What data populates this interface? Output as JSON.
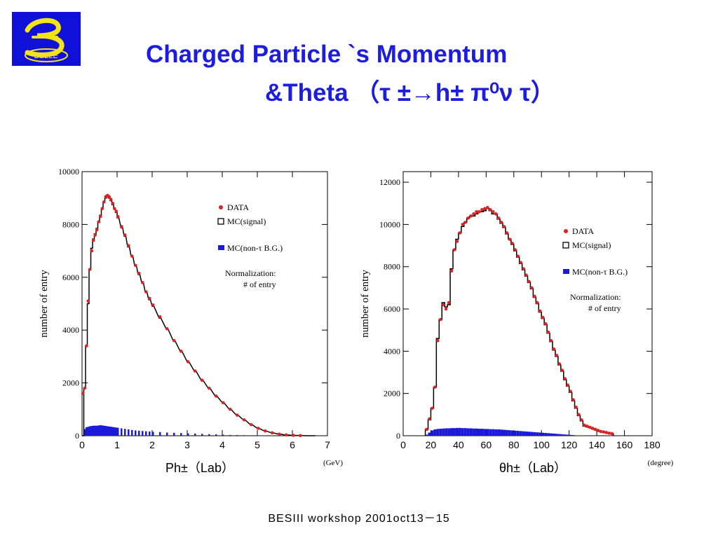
{
  "logo": {
    "letter": "B",
    "text": "BELLE"
  },
  "title": {
    "line1": "Charged Particle `s  Momentum",
    "line2": "&Theta  （τ ±→h± π⁰ν τ）"
  },
  "footer": "BESIII  workshop  2001oct13－15",
  "colors": {
    "title": "#1d1de0",
    "data": "#dd2222",
    "mc_signal": "#000000",
    "mc_bg": "#1a1ad8",
    "logo_bg": "#1010d8",
    "logo_fg": "#f2e31a"
  },
  "chart_data": [
    {
      "type": "histogram",
      "ylabel": "number of entry",
      "xlabel_left": "Ph±（Lab）",
      "xlabel_unit": "(GeV)",
      "xlim": [
        0,
        7
      ],
      "ylim": [
        0,
        10000
      ],
      "xticks": [
        "0",
        "1",
        "2",
        "3",
        "4",
        "5",
        "6",
        "7"
      ],
      "yticks": [
        "0",
        "2000",
        "4000",
        "6000",
        "8000",
        "10000"
      ],
      "legend": [
        "DATA",
        "MC(signal)",
        "MC(non-τ B.G.)"
      ],
      "note": [
        "Normalization:",
        "# of entry"
      ],
      "x": [
        0.0,
        0.05,
        0.1,
        0.15,
        0.2,
        0.25,
        0.3,
        0.35,
        0.4,
        0.45,
        0.5,
        0.55,
        0.6,
        0.65,
        0.7,
        0.75,
        0.8,
        0.85,
        0.9,
        0.95,
        1.0,
        1.1,
        1.2,
        1.3,
        1.4,
        1.5,
        1.6,
        1.7,
        1.8,
        1.9,
        2.0,
        2.2,
        2.4,
        2.6,
        2.8,
        3.0,
        3.2,
        3.4,
        3.6,
        3.8,
        4.0,
        4.2,
        4.4,
        4.6,
        4.8,
        5.0,
        5.2,
        5.4,
        5.6,
        5.8,
        6.0,
        6.2,
        6.4,
        6.6
      ],
      "series": [
        {
          "name": "DATA",
          "values": [
            1600,
            1800,
            3400,
            5100,
            6300,
            7000,
            7400,
            7600,
            7800,
            8100,
            8300,
            8600,
            8850,
            9050,
            9100,
            9050,
            8950,
            8800,
            8600,
            8500,
            8300,
            7900,
            7600,
            7200,
            6800,
            6450,
            6150,
            5800,
            5450,
            5200,
            4950,
            4500,
            4050,
            3600,
            3200,
            2800,
            2450,
            2100,
            1800,
            1500,
            1250,
            1000,
            780,
            600,
            420,
            280,
            180,
            110,
            60,
            30,
            15,
            5,
            0,
            0
          ]
        },
        {
          "name": "MC(signal)",
          "values": [
            0,
            1800,
            3400,
            5000,
            6300,
            7100,
            7450,
            7650,
            7850,
            8100,
            8350,
            8600,
            8850,
            9000,
            9050,
            9000,
            8900,
            8750,
            8600,
            8450,
            8250,
            7950,
            7550,
            7150,
            6800,
            6450,
            6100,
            5800,
            5450,
            5150,
            4900,
            4450,
            4050,
            3600,
            3200,
            2800,
            2450,
            2100,
            1800,
            1500,
            1250,
            1000,
            780,
            600,
            420,
            280,
            180,
            110,
            60,
            30,
            15,
            5,
            0,
            0
          ]
        },
        {
          "name": "MC(non-τ B.G.)",
          "values": [
            0,
            250,
            320,
            340,
            360,
            370,
            380,
            380,
            380,
            390,
            400,
            390,
            380,
            370,
            360,
            350,
            340,
            330,
            320,
            310,
            300,
            280,
            260,
            240,
            220,
            200,
            190,
            180,
            170,
            160,
            150,
            140,
            120,
            110,
            100,
            90,
            80,
            70,
            60,
            50,
            40,
            30,
            25,
            20,
            15,
            10,
            8,
            5,
            3,
            2,
            1,
            0,
            0,
            0
          ]
        }
      ]
    },
    {
      "type": "histogram",
      "ylabel": "number of entry",
      "xlabel_left": "θh±（Lab）",
      "xlabel_unit": "(degree)",
      "xlim": [
        0,
        180
      ],
      "ylim": [
        0,
        12500
      ],
      "xticks": [
        "0",
        "20",
        "40",
        "60",
        "80",
        "100",
        "120",
        "140",
        "160",
        "180"
      ],
      "yticks": [
        "0",
        "2000",
        "4000",
        "6000",
        "8000",
        "10000",
        "12000"
      ],
      "legend": [
        "DATA",
        "MC(signal)",
        "MC(non-τ B.G.)"
      ],
      "note": [
        "Normalization:",
        "# of entry"
      ],
      "x": [
        16,
        18,
        20,
        22,
        24,
        26,
        28,
        30,
        32,
        34,
        36,
        38,
        40,
        42,
        44,
        46,
        48,
        50,
        52,
        54,
        56,
        58,
        60,
        62,
        64,
        66,
        68,
        70,
        72,
        74,
        76,
        78,
        80,
        82,
        84,
        86,
        88,
        90,
        92,
        94,
        96,
        98,
        100,
        102,
        104,
        106,
        108,
        110,
        112,
        114,
        116,
        118,
        120,
        122,
        124,
        126,
        128,
        130,
        132,
        134,
        136,
        138,
        140,
        142,
        144,
        146,
        148,
        150
      ],
      "series": [
        {
          "name": "DATA",
          "values": [
            300,
            800,
            1300,
            2300,
            4500,
            5500,
            6200,
            6000,
            6300,
            7800,
            8800,
            9200,
            9600,
            10000,
            10100,
            10300,
            10400,
            10500,
            10600,
            10600,
            10700,
            10750,
            10800,
            10700,
            10600,
            10500,
            10300,
            10100,
            9900,
            9600,
            9300,
            9100,
            8800,
            8500,
            8200,
            7900,
            7600,
            7300,
            7000,
            6600,
            6300,
            5900,
            5600,
            5300,
            4900,
            4500,
            4100,
            3800,
            3400,
            3100,
            2700,
            2400,
            2100,
            1700,
            1350,
            1000,
            750,
            500,
            450,
            400,
            350,
            300,
            250,
            200,
            180,
            150,
            120,
            100
          ]
        },
        {
          "name": "MC(signal)",
          "values": [
            300,
            750,
            1300,
            2300,
            4600,
            5500,
            6300,
            6100,
            6200,
            7900,
            8800,
            9300,
            9600,
            9900,
            10100,
            10300,
            10400,
            10400,
            10500,
            10600,
            10600,
            10650,
            10750,
            10650,
            10500,
            10500,
            10250,
            10050,
            9850,
            9550,
            9300,
            9050,
            8750,
            8450,
            8150,
            7850,
            7550,
            7250,
            6950,
            6550,
            6250,
            5850,
            5550,
            5250,
            4850,
            4450,
            4050,
            3750,
            3350,
            3050,
            2650,
            2350,
            2050,
            1650,
            1300,
            950,
            700,
            450,
            420,
            380,
            330,
            280,
            230,
            190,
            170,
            140,
            110,
            90
          ]
        },
        {
          "name": "MC(non-τ B.G.)",
          "values": [
            50,
            150,
            250,
            300,
            320,
            330,
            340,
            350,
            350,
            360,
            360,
            370,
            370,
            360,
            360,
            350,
            350,
            340,
            340,
            330,
            330,
            320,
            320,
            310,
            310,
            300,
            300,
            290,
            280,
            270,
            260,
            250,
            240,
            230,
            220,
            210,
            200,
            190,
            180,
            170,
            160,
            150,
            140,
            130,
            120,
            110,
            100,
            90,
            80,
            70,
            60,
            50,
            40,
            30,
            20,
            10,
            8,
            5,
            4,
            3,
            2,
            2,
            1,
            1,
            0,
            0,
            0,
            0
          ]
        }
      ]
    }
  ]
}
